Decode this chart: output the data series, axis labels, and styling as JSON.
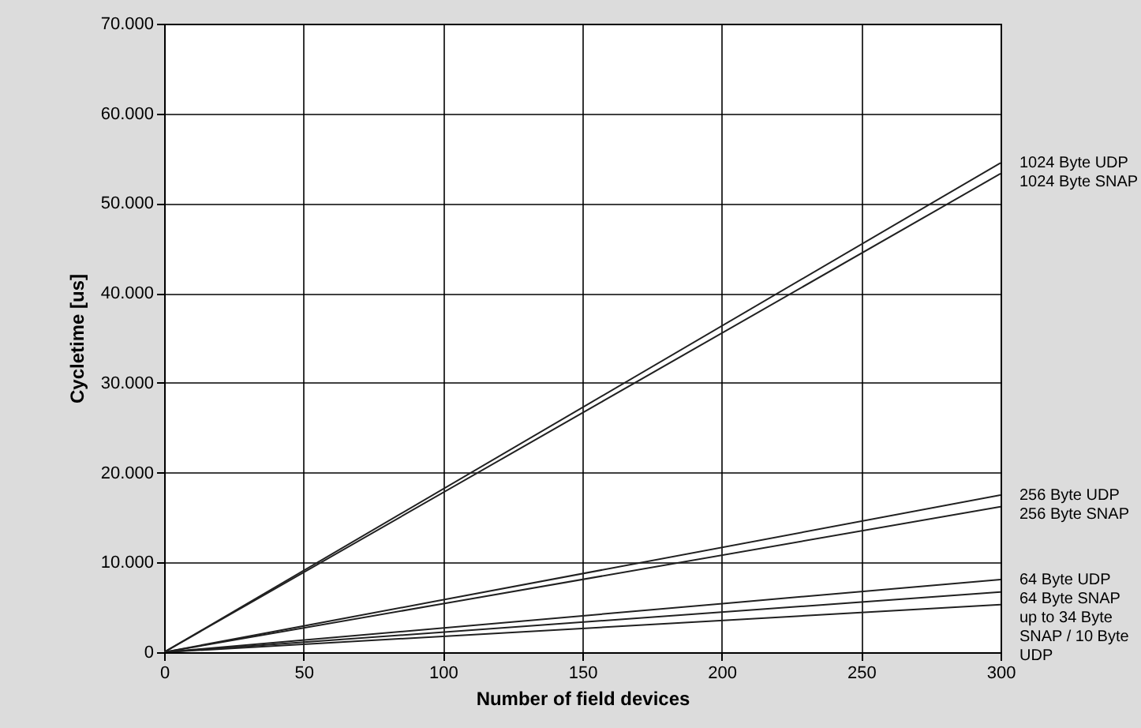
{
  "chart_data": {
    "type": "line",
    "xlabel": "Number of field devices",
    "ylabel": "Cycletime [us]",
    "x": [
      0,
      300
    ],
    "series": [
      {
        "name": "1024 Byte UDP",
        "color": "#202020",
        "values": [
          0,
          54500
        ]
      },
      {
        "name": "1024 Byte SNAP",
        "color": "#202020",
        "values": [
          0,
          53300
        ]
      },
      {
        "name": "256 Byte UDP",
        "color": "#202020",
        "values": [
          0,
          17500
        ]
      },
      {
        "name": "256 Byte SNAP",
        "color": "#202020",
        "values": [
          0,
          16200
        ]
      },
      {
        "name": "64 Byte UDP",
        "color": "#202020",
        "values": [
          0,
          8100
        ]
      },
      {
        "name": "64 Byte SNAP",
        "color": "#202020",
        "values": [
          0,
          6700
        ]
      },
      {
        "name": "up to 34 Byte SNAP / 10 Byte UDP",
        "color": "#202020",
        "values": [
          0,
          5300
        ]
      }
    ],
    "xlim": [
      0,
      300
    ],
    "xticks": [
      0,
      50,
      100,
      150,
      200,
      250,
      300
    ],
    "ylim": [
      0,
      70000
    ],
    "yticks": [
      {
        "value": 0,
        "label": "0"
      },
      {
        "value": 10000,
        "label": "10.000"
      },
      {
        "value": 20000,
        "label": "20.000"
      },
      {
        "value": 30000,
        "label": "30.000"
      },
      {
        "value": 40000,
        "label": "40.000"
      },
      {
        "value": 50000,
        "label": "50.000"
      },
      {
        "value": 60000,
        "label": "60.000"
      },
      {
        "value": 70000,
        "label": "70.000"
      }
    ],
    "grid": true,
    "marker": "none",
    "line_style": "solid"
  }
}
